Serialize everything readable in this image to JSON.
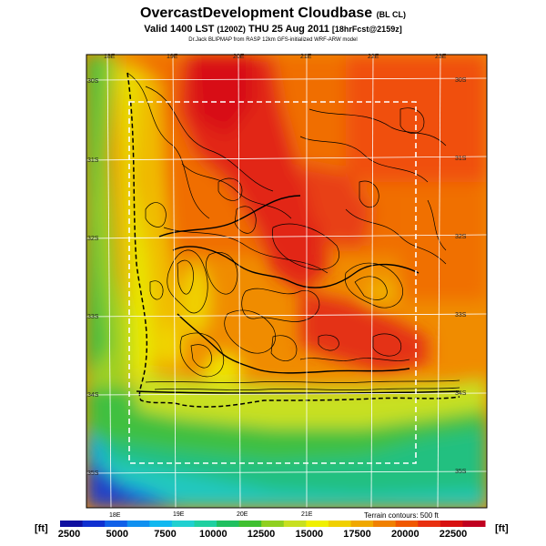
{
  "title": {
    "main": "OvercastDevelopment Cloudbase",
    "suffix": "(BL CL)",
    "valid": "Valid 1400 LST",
    "utc": "(1200Z)",
    "date": "THU 25 Aug 2011",
    "fcst": "[18hrFcst@2159z]",
    "credit": "Dr.Jack BLIPMAP from RASP 12km GFS-initialized WRF-ARW model"
  },
  "map": {
    "lon_top": [
      "18E",
      "19E",
      "20E",
      "21E",
      "22E",
      "23E"
    ],
    "lon_bottom": [
      "18E",
      "19E",
      "20E",
      "21E"
    ],
    "lat_left": [
      "30S",
      "31S",
      "32S",
      "33S",
      "34S",
      "35S"
    ],
    "lat_right": [
      "30S",
      "31S",
      "32S",
      "33S",
      "34S",
      "35S"
    ],
    "terrain_note": "Terrain contours: 500 ft"
  },
  "colorbar": {
    "unit_left": "[ft]",
    "unit_right": "[ft]",
    "labels": [
      "2500",
      "5000",
      "7500",
      "10000",
      "12500",
      "15000",
      "17500",
      "20000",
      "22500"
    ],
    "colors": [
      "#1010a0",
      "#1030d0",
      "#1060e8",
      "#1090f0",
      "#10b8f0",
      "#20d0d0",
      "#20d0a0",
      "#20c060",
      "#40c030",
      "#90d020",
      "#c8e020",
      "#f0f000",
      "#f0d000",
      "#f0a800",
      "#f08000",
      "#f05800",
      "#e83010",
      "#d81010",
      "#c00020"
    ]
  }
}
